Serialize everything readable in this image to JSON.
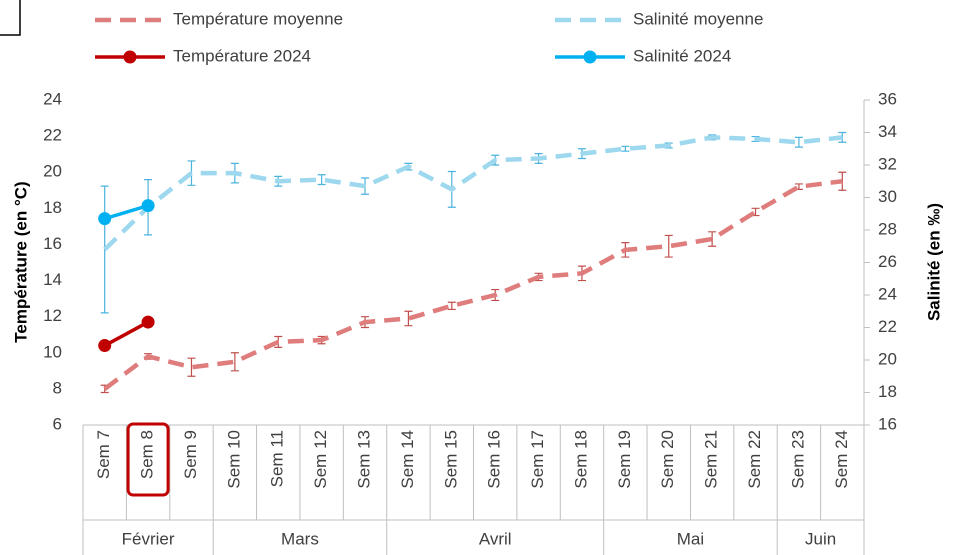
{
  "chart_data": {
    "type": "line",
    "categories": [
      "Sem 7",
      "Sem 8",
      "Sem 9",
      "Sem 10",
      "Sem 11",
      "Sem 12",
      "Sem 13",
      "Sem 14",
      "Sem 15",
      "Sem 16",
      "Sem 17",
      "Sem 18",
      "Sem 19",
      "Sem 20",
      "Sem 21",
      "Sem 22",
      "Sem 23",
      "Sem 24"
    ],
    "months": [
      {
        "name": "Février",
        "count": 3
      },
      {
        "name": "Mars",
        "count": 4
      },
      {
        "name": "Avril",
        "count": 5
      },
      {
        "name": "Mai",
        "count": 4
      },
      {
        "name": "Juin",
        "count": 2
      }
    ],
    "highlight_category": 1,
    "ylabel": "Température  (en °C)",
    "y2label": "Salinité (en ‰)",
    "ylim": [
      6,
      24
    ],
    "yticks": [
      6,
      8,
      10,
      12,
      14,
      16,
      18,
      20,
      22,
      24
    ],
    "y2lim": [
      16,
      36
    ],
    "y2ticks": [
      16,
      18,
      20,
      22,
      24,
      26,
      28,
      30,
      32,
      34,
      36
    ],
    "legend": "top",
    "series": [
      {
        "name": "Température moyenne",
        "color": "#df7c7c",
        "error_color": "#c0504d",
        "dashed": true,
        "markers": false,
        "values": [
          8.0,
          9.8,
          9.2,
          9.5,
          10.6,
          10.7,
          11.7,
          11.9,
          12.6,
          13.2,
          14.2,
          14.4,
          15.7,
          15.9,
          16.3,
          17.8,
          19.2,
          19.5
        ],
        "errors": [
          0.2,
          0.15,
          0.5,
          0.5,
          0.3,
          0.2,
          0.3,
          0.4,
          0.2,
          0.3,
          0.2,
          0.4,
          0.4,
          0.6,
          0.4,
          0.2,
          0.15,
          0.5
        ]
      },
      {
        "name": "Température 2024",
        "color": "#c00000",
        "dashed": false,
        "markers": true,
        "values": [
          10.4,
          11.7,
          null,
          null,
          null,
          null,
          null,
          null,
          null,
          null,
          null,
          null,
          null,
          null,
          null,
          null,
          null,
          null
        ]
      },
      {
        "name": "Salinité moyenne",
        "color": "#9dd8ee",
        "error_color": "#4bb3dd",
        "dashed": true,
        "markers": false,
        "axis": "y2",
        "values": [
          26.8,
          29.4,
          31.5,
          31.5,
          31.0,
          31.1,
          30.7,
          31.9,
          30.5,
          32.3,
          32.4,
          32.7,
          33.0,
          33.2,
          33.7,
          33.6,
          33.4,
          33.7
        ],
        "errors": [
          3.9,
          1.7,
          0.75,
          0.6,
          0.3,
          0.3,
          0.5,
          0.2,
          1.1,
          0.3,
          0.3,
          0.3,
          0.15,
          0.15,
          0.15,
          0.15,
          0.3,
          0.3
        ]
      },
      {
        "name": "Salinité 2024",
        "color": "#00b0f0",
        "dashed": false,
        "markers": true,
        "axis": "y2",
        "values": [
          28.7,
          29.5,
          null,
          null,
          null,
          null,
          null,
          null,
          null,
          null,
          null,
          null,
          null,
          null,
          null,
          null,
          null,
          null
        ]
      }
    ]
  }
}
